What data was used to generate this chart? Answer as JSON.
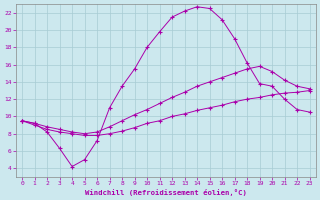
{
  "xlabel": "Windchill (Refroidissement éolien,°C)",
  "bg_color": "#cce8ee",
  "grid_color": "#a8ccd4",
  "line_color": "#aa00aa",
  "xlim": [
    -0.5,
    23.5
  ],
  "ylim": [
    3,
    23
  ],
  "xticks": [
    0,
    1,
    2,
    3,
    4,
    5,
    6,
    7,
    8,
    9,
    10,
    11,
    12,
    13,
    14,
    15,
    16,
    17,
    18,
    19,
    20,
    21,
    22,
    23
  ],
  "yticks": [
    4,
    6,
    8,
    10,
    12,
    14,
    16,
    18,
    20,
    22
  ],
  "line1_x": [
    0,
    1,
    2,
    3,
    4,
    5,
    6,
    7,
    8,
    9,
    10,
    11,
    12,
    13,
    14,
    15,
    16,
    17,
    18,
    19,
    20,
    21,
    22,
    23
  ],
  "line1_y": [
    9.5,
    9.2,
    8.2,
    6.3,
    4.2,
    5.0,
    7.2,
    11.0,
    13.5,
    15.5,
    18.0,
    19.8,
    21.5,
    22.2,
    22.7,
    22.5,
    21.2,
    19.0,
    16.2,
    13.8,
    13.5,
    12.0,
    10.8,
    10.5
  ],
  "line2_x": [
    0,
    1,
    2,
    3,
    4,
    5,
    6,
    7,
    8,
    9,
    10,
    11,
    12,
    13,
    14,
    15,
    16,
    17,
    18,
    19,
    20,
    21,
    22,
    23
  ],
  "line2_y": [
    9.5,
    9.2,
    8.8,
    8.5,
    8.2,
    8.0,
    8.2,
    8.8,
    9.5,
    10.2,
    10.8,
    11.5,
    12.2,
    12.8,
    13.5,
    14.0,
    14.5,
    15.0,
    15.5,
    15.8,
    15.2,
    14.2,
    13.5,
    13.2
  ],
  "line3_x": [
    0,
    1,
    2,
    3,
    4,
    5,
    6,
    7,
    8,
    9,
    10,
    11,
    12,
    13,
    14,
    15,
    16,
    17,
    18,
    19,
    20,
    21,
    22,
    23
  ],
  "line3_y": [
    9.5,
    9.0,
    8.5,
    8.2,
    8.0,
    7.8,
    7.8,
    8.0,
    8.3,
    8.7,
    9.2,
    9.5,
    10.0,
    10.3,
    10.7,
    11.0,
    11.3,
    11.7,
    12.0,
    12.2,
    12.5,
    12.7,
    12.8,
    13.0
  ]
}
